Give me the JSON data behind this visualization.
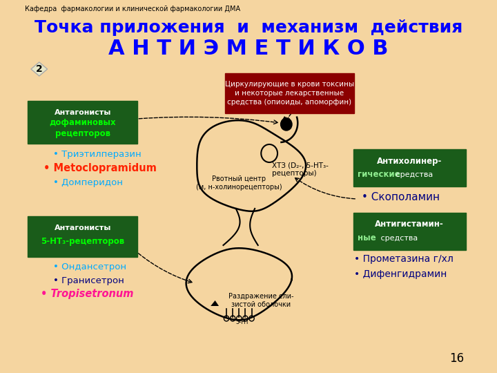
{
  "bg_color": "#f5d5a0",
  "header_text": "Кафедра  фармакологии и клинической фармакологии ДМА",
  "title_line1": "Точка приложения  и  механизм  действия",
  "title_line2": "А Н Т И Э М Е Т И К О В",
  "slide_number": "2",
  "page_number": "16",
  "box_dopamine_bg": "#1a5c1a",
  "box_dopamine_title": "Антагонисты",
  "box_dopamine_subtitle": "дофаминовых\nрецепторов",
  "box_dopamine_subtitle_color": "#00ff00",
  "drug1_color": "#00aaff",
  "drug1_text": "• Триэтилперазин",
  "drug2_color": "#ff2200",
  "drug2_text": "• Metoclopramidum",
  "drug3_color": "#00aaff",
  "drug3_text": "• Домперидон",
  "box_5ht_bg": "#1a5c1a",
  "box_5ht_title": "Антагонисты",
  "box_5ht_subtitle": "5-НТ₃-рецепторов",
  "box_5ht_subtitle_color": "#00ff00",
  "drug4_color": "#00aaff",
  "drug4_text": "• Ондансетрон",
  "drug5_color": "#000080",
  "drug5_text": "• Гранисетрон",
  "drug6_color": "#ff1493",
  "drug6_text": "• Tropisetronum",
  "box_circ_bg": "#8b0000",
  "box_circ_text": "Циркулирующие в крови токсины\nи некоторые лекарственные\nсредства (опиоиды, апоморфин)",
  "box_anticholinergic_bg": "#1a5c1a",
  "box_anticholinergic_line1": "Антихолинер-",
  "box_anticholinergic_line2_bold": "гические",
  "box_anticholinergic_line2_rest": " средства",
  "scopolamine_color": "#000080",
  "scopolamine_text": "• Скополамин",
  "box_antihistamine_bg": "#1a5c1a",
  "box_antihistamine_line1": "Антигистамин-",
  "box_antihistamine_line2_bold": "ные",
  "box_antihistamine_line2_rest": " средства",
  "prometazine_color": "#000080",
  "prometazine_text": "• Прометазина г/хл",
  "difen_color": "#000080",
  "difen_text": "• Дифенгидрамин",
  "htz_label": "ХТЗ (D₂-, 5-НТ₃-\nрецепторы)",
  "vomit_label": "Рвотный центр\n(м, н-холинорецепторы)",
  "irritation_label": "Раздражение сли-\nзистой оболочки"
}
